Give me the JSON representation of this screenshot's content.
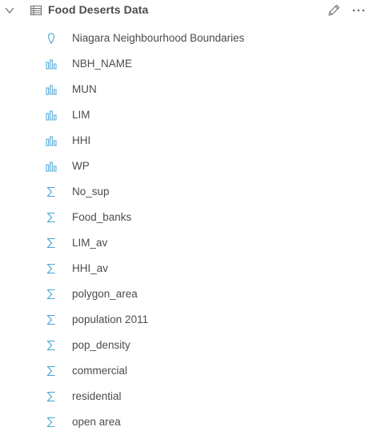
{
  "dataset": {
    "title": "Food Deserts Data",
    "icon": "table-icon",
    "actions": {
      "collapse_icon": "chevron-down-icon",
      "rename_icon": "pencil-icon",
      "more_icon": "ellipsis-icon"
    }
  },
  "colors": {
    "text": "#4c4c4c",
    "icon_accent": "#4aa3d8"
  },
  "fields": [
    {
      "label": "Niagara Neighbourhood Boundaries",
      "type": "location",
      "icon": "location-pin-icon"
    },
    {
      "label": "NBH_NAME",
      "type": "string",
      "icon": "string-field-icon"
    },
    {
      "label": "MUN",
      "type": "string",
      "icon": "string-field-icon"
    },
    {
      "label": "LIM",
      "type": "string",
      "icon": "string-field-icon"
    },
    {
      "label": "HHI",
      "type": "string",
      "icon": "string-field-icon"
    },
    {
      "label": "WP",
      "type": "string",
      "icon": "string-field-icon"
    },
    {
      "label": "No_sup",
      "type": "number",
      "icon": "sigma-icon"
    },
    {
      "label": "Food_banks",
      "type": "number",
      "icon": "sigma-icon"
    },
    {
      "label": "LIM_av",
      "type": "number",
      "icon": "sigma-icon"
    },
    {
      "label": "HHI_av",
      "type": "number",
      "icon": "sigma-icon"
    },
    {
      "label": "polygon_area",
      "type": "number",
      "icon": "sigma-icon"
    },
    {
      "label": "population 2011",
      "type": "number",
      "icon": "sigma-icon"
    },
    {
      "label": "pop_density",
      "type": "number",
      "icon": "sigma-icon"
    },
    {
      "label": "commercial",
      "type": "number",
      "icon": "sigma-icon"
    },
    {
      "label": "residential",
      "type": "number",
      "icon": "sigma-icon"
    },
    {
      "label": "open area",
      "type": "number",
      "icon": "sigma-icon"
    }
  ]
}
